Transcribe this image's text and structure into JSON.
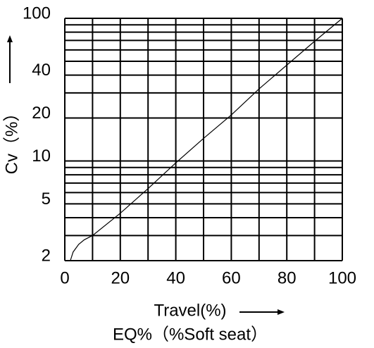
{
  "chart_data": {
    "type": "line",
    "x_label": "Travel(%)",
    "y_label": "Cv（%）",
    "subtitle": "EQ%（%Soft seat）",
    "x": [
      2,
      3,
      5,
      7,
      10,
      20,
      30,
      40,
      50,
      60,
      70,
      80,
      90,
      100
    ],
    "values": [
      2,
      2.3,
      2.6,
      2.8,
      3,
      4.3,
      6.4,
      9.7,
      14.4,
      21,
      32,
      47,
      69,
      100
    ],
    "color": "#000000",
    "xlim": [
      0,
      100
    ],
    "xticks": [
      0,
      20,
      40,
      60,
      80,
      100
    ],
    "xgrid": [
      0,
      10,
      20,
      30,
      40,
      50,
      60,
      70,
      80,
      90,
      100
    ],
    "ylim": [
      2,
      100
    ],
    "yticks": [
      2,
      5,
      10,
      20,
      40,
      100
    ],
    "ygrid": [
      2,
      3,
      4,
      5,
      6,
      7,
      8,
      9,
      10,
      20,
      30,
      40,
      50,
      60,
      70,
      80,
      90,
      100
    ],
    "y_log": true,
    "grid": true
  }
}
